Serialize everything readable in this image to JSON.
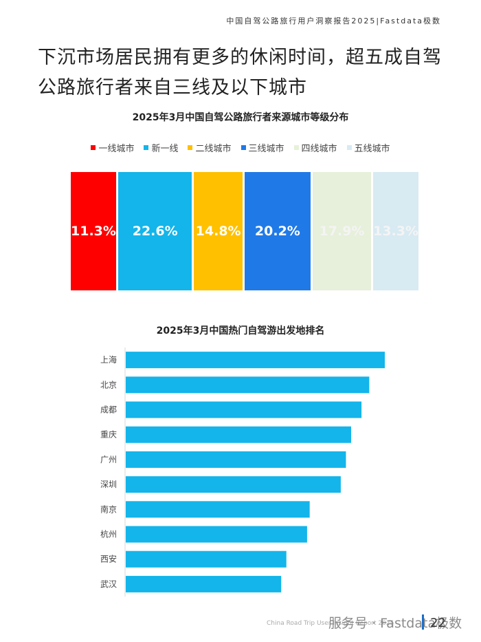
{
  "header": {
    "text": "中国自驾公路旅行用户洞察报告2025|Fastdata极数"
  },
  "headline": {
    "text": "下沉市场居民拥有更多的休闲时间，超五成自驾公路旅行者来自三线及以下城市"
  },
  "chart_data": [
    {
      "type": "bar",
      "stacked": true,
      "orientation": "horizontal",
      "title": "2025年3月中国自驾公路旅行者来源城市等级分布",
      "legend_position": "top",
      "unit": "%",
      "series": [
        {
          "name": "一线城市",
          "value": 11.3,
          "label": "11.3%",
          "color": "#ff0000"
        },
        {
          "name": "新一线",
          "value": 22.6,
          "label": "22.6%",
          "color": "#13b5ea"
        },
        {
          "name": "二线城市",
          "value": 14.8,
          "label": "14.8%",
          "color": "#ffc000"
        },
        {
          "name": "三线城市",
          "value": 20.2,
          "label": "20.2%",
          "color": "#1f7ae8"
        },
        {
          "name": "四线城市",
          "value": 17.9,
          "label": "17.9%",
          "color": "#e6f0da"
        },
        {
          "name": "五线城市",
          "value": 13.3,
          "label": "13.3%",
          "color": "#d8eaf2"
        }
      ]
    },
    {
      "type": "bar",
      "orientation": "horizontal",
      "title": "2025年3月中国热门自驾游出发地排名",
      "categories": [
        "上海",
        "北京",
        "成都",
        "重庆",
        "广州",
        "深圳",
        "南京",
        "杭州",
        "西安",
        "武汉"
      ],
      "values": [
        100,
        94,
        91,
        87,
        85,
        83,
        71,
        70,
        62,
        60
      ],
      "xlim": [
        0,
        100
      ],
      "bar_color": "#13b5ea",
      "grid": false
    }
  ],
  "footer": {
    "text": "China Road Trip User Insight Report 2025"
  },
  "watermark": {
    "text": "服务号 · Fastdata极数"
  },
  "page": {
    "number": "22"
  }
}
